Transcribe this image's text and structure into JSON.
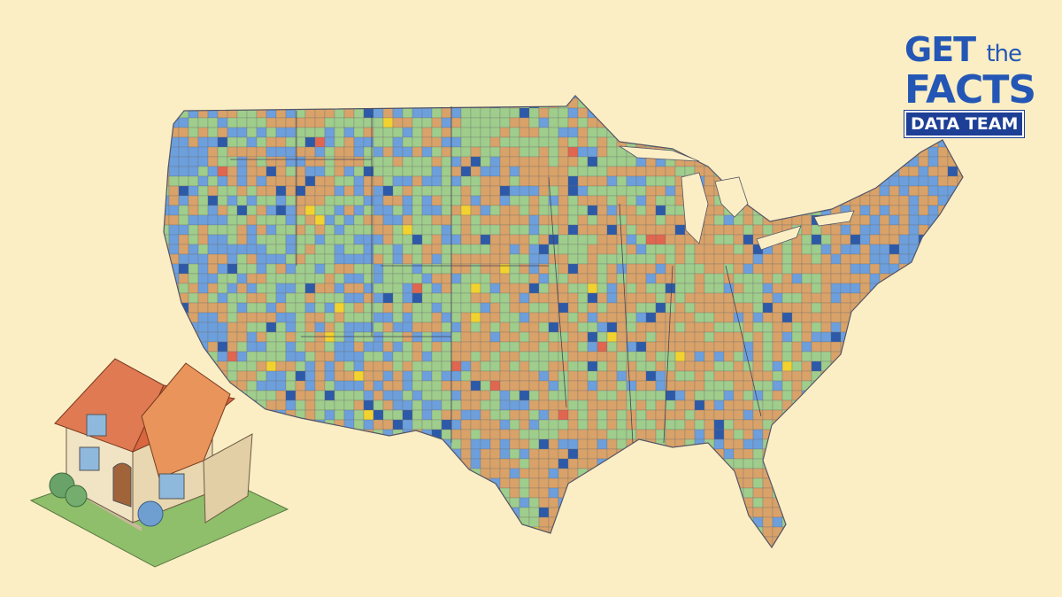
{
  "logo": {
    "word1": "GET",
    "word2": "the",
    "word3": "FACTS",
    "badge": "DATA TEAM"
  }
}
